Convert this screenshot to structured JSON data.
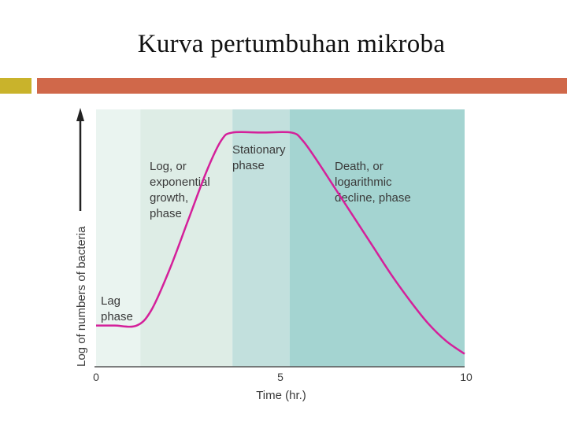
{
  "slide": {
    "title": "Kurva pertumbuhan mikroba",
    "accent_square_color": "#c9b32b",
    "accent_bar_color": "#d0684a"
  },
  "chart_data": {
    "type": "line",
    "title": "",
    "xlabel": "Time (hr.)",
    "ylabel": "Log of numbers of bacteria",
    "xlim": [
      0,
      10
    ],
    "ylim": [
      0,
      1
    ],
    "x_tick_labels": [
      "0",
      "5",
      "10"
    ],
    "x_ticks": [
      0,
      5,
      10
    ],
    "grid": false,
    "series": [
      {
        "color": "#d4209a",
        "x": [
          0,
          0.5,
          1.1,
          1.5,
          2.0,
          2.5,
          3.0,
          3.4,
          3.7,
          4.5,
          5.3,
          5.6,
          6.0,
          6.5,
          7.0,
          7.5,
          8.0,
          8.5,
          9.0,
          9.5,
          10
        ],
        "y": [
          0.16,
          0.16,
          0.16,
          0.22,
          0.38,
          0.57,
          0.76,
          0.88,
          0.91,
          0.91,
          0.91,
          0.88,
          0.8,
          0.69,
          0.58,
          0.47,
          0.36,
          0.26,
          0.17,
          0.1,
          0.05
        ]
      }
    ],
    "phases": [
      {
        "label_lines": [
          "Lag",
          "phase"
        ],
        "x_start": 0,
        "x_end": 1.2,
        "color": "#eaf4f0"
      },
      {
        "label_lines": [
          "Log, or",
          "exponential",
          "growth,",
          "phase"
        ],
        "x_start": 1.2,
        "x_end": 3.7,
        "color": "#deede6"
      },
      {
        "label_lines": [
          "Stationary",
          "phase"
        ],
        "x_start": 3.7,
        "x_end": 5.25,
        "color": "#c2e0dd"
      },
      {
        "label_lines": [
          "Death, or",
          "logarithmic",
          "decline, phase"
        ],
        "x_start": 5.25,
        "x_end": 10,
        "color": "#a4d4d1"
      }
    ]
  }
}
